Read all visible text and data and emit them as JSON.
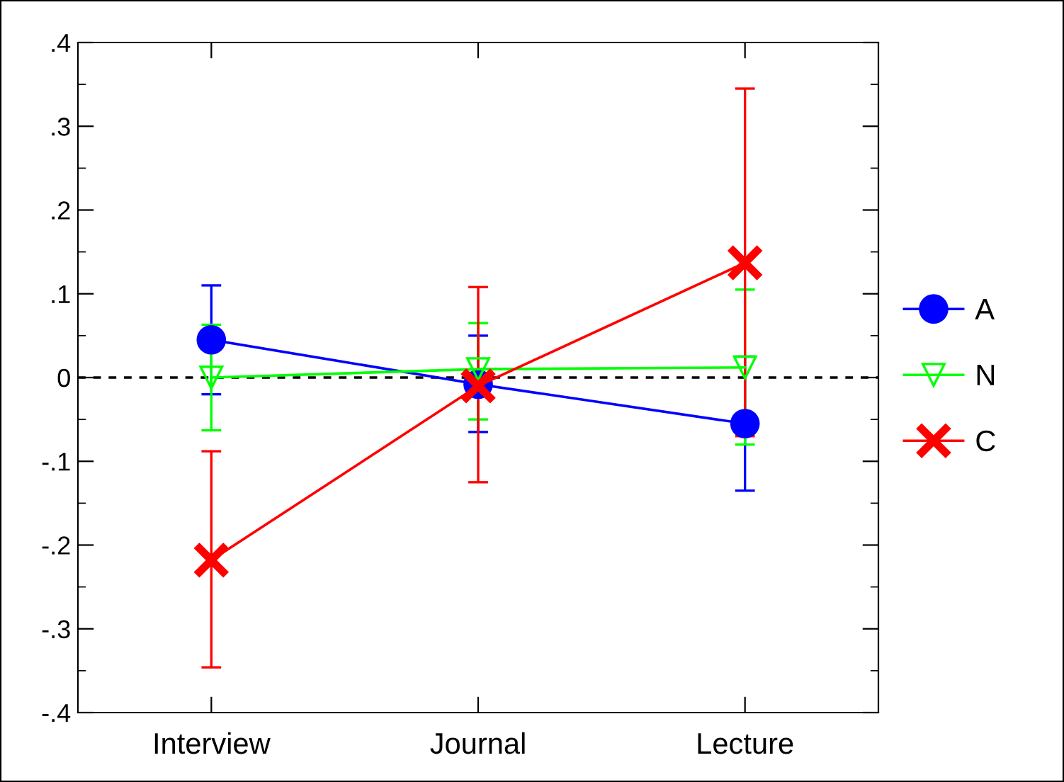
{
  "chart_data": {
    "type": "line",
    "categories": [
      "Interview",
      "Journal",
      "Lecture"
    ],
    "series": [
      {
        "name": "A",
        "color": "#0000ff",
        "marker": "circle",
        "values": [
          0.045,
          -0.008,
          -0.055
        ],
        "errors": [
          [
            -0.02,
            0.11
          ],
          [
            -0.065,
            0.05
          ],
          [
            -0.135,
            0.025
          ]
        ]
      },
      {
        "name": "N",
        "color": "#00ff00",
        "marker": "triangle",
        "values": [
          0.0,
          0.01,
          0.012
        ],
        "errors": [
          [
            -0.063,
            0.063
          ],
          [
            -0.05,
            0.065
          ],
          [
            -0.08,
            0.105
          ]
        ]
      },
      {
        "name": "C",
        "color": "#ff0000",
        "marker": "cross",
        "values": [
          -0.218,
          -0.01,
          0.137
        ],
        "errors": [
          [
            -0.346,
            -0.088
          ],
          [
            -0.125,
            0.108
          ],
          [
            -0.07,
            0.345
          ]
        ]
      }
    ],
    "ylim": [
      -0.4,
      0.4
    ],
    "yticks": [
      {
        "value": -0.4,
        "label": "-.4"
      },
      {
        "value": -0.3,
        "label": "-.3"
      },
      {
        "value": -0.2,
        "label": "-.2"
      },
      {
        "value": -0.1,
        "label": "-.1"
      },
      0,
      {
        "value": 0.1,
        "label": ".1"
      },
      {
        "value": 0.2,
        "label": ".2"
      },
      {
        "value": 0.3,
        "label": ".3"
      },
      {
        "value": 0.4,
        "label": ".4"
      }
    ],
    "ref_lines": [
      {
        "axis": "y",
        "value": 0,
        "color": "#000000",
        "line_style": "dashed"
      }
    ],
    "grid": false,
    "legend": "right"
  }
}
